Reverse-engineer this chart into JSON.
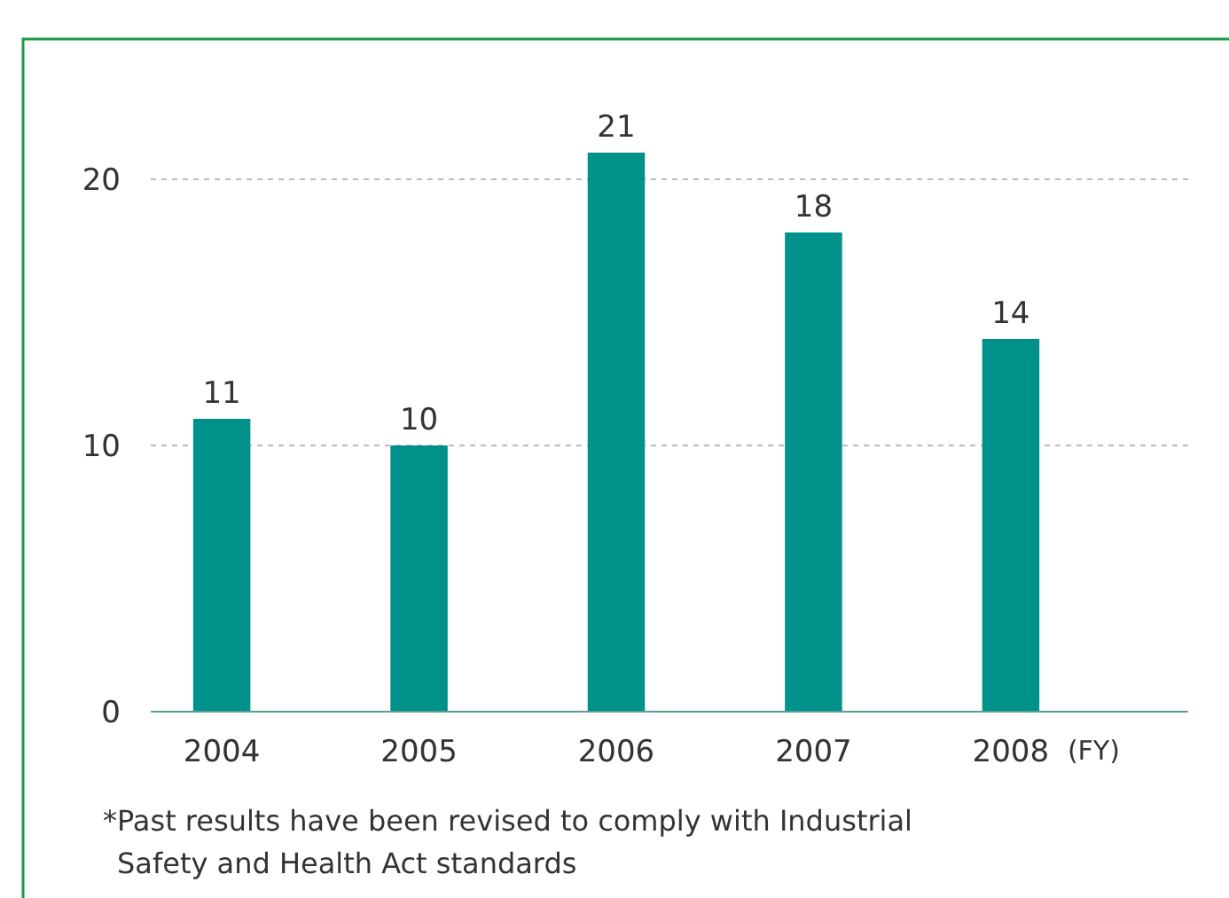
{
  "chart_data": {
    "type": "bar",
    "categories": [
      "2004",
      "2005",
      "2006",
      "2007",
      "2008"
    ],
    "values": [
      11,
      10,
      21,
      18,
      14
    ],
    "color": "#00918a",
    "data_labels": true,
    "xlabel": "(FY)",
    "ylim": [
      0,
      21
    ],
    "yticks": [
      0,
      10,
      20
    ],
    "grid": "y",
    "annotations": [
      "*Past results have been revised to comply with Industrial Safety and Health Act standards"
    ]
  }
}
